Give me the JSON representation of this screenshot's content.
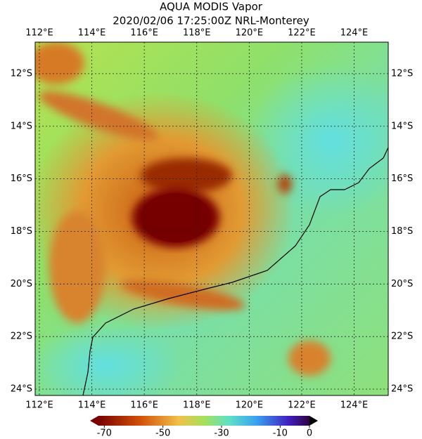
{
  "title": [
    "AQUA MODIS Vapor",
    "2020/02/06 17:25:00Z NRL-Monterey"
  ],
  "map": {
    "xlim": [
      111.84,
      125.3
    ],
    "ylim": [
      -10.8,
      -24.24
    ],
    "xticks": [
      {
        "value": 112,
        "label": "112°E"
      },
      {
        "value": 114,
        "label": "114°E"
      },
      {
        "value": 116,
        "label": "116°E"
      },
      {
        "value": 118,
        "label": "118°E"
      },
      {
        "value": 120,
        "label": "120°E"
      },
      {
        "value": 122,
        "label": "122°E"
      },
      {
        "value": 124,
        "label": "124°E"
      }
    ],
    "yticks": [
      {
        "value": -12,
        "label": "12°S"
      },
      {
        "value": -14,
        "label": "14°S"
      },
      {
        "value": -16,
        "label": "16°S"
      },
      {
        "value": -18,
        "label": "18°S"
      },
      {
        "value": -20,
        "label": "20°S"
      },
      {
        "value": -22,
        "label": "22°S"
      },
      {
        "value": -24,
        "label": "24°S"
      }
    ]
  },
  "colorbar": {
    "lim": [
      -72,
      0
    ],
    "ticks": [
      -70,
      -50,
      -30,
      -10,
      0
    ]
  }
}
